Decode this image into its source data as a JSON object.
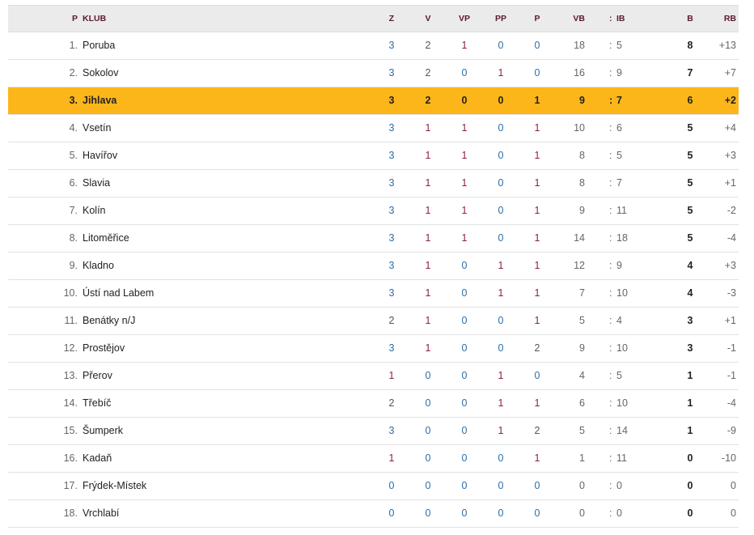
{
  "header": {
    "p": "P",
    "club": "KLUB",
    "z": "Z",
    "v": "V",
    "vp": "VP",
    "pp": "PP",
    "l": "P",
    "vb": "VB",
    "colon": ":",
    "ib": "IB",
    "b": "B",
    "rb": "RB"
  },
  "highlight_color": "#fdb61a",
  "highlighted_club": "Jihlava",
  "rows": [
    {
      "pos": "1.",
      "club": "Poruba",
      "z": "3",
      "v": "2",
      "vp": "1",
      "pp": "0",
      "l": "0",
      "vb": "18",
      "ib": "5",
      "b": "8",
      "rb": "+13"
    },
    {
      "pos": "2.",
      "club": "Sokolov",
      "z": "3",
      "v": "2",
      "vp": "0",
      "pp": "1",
      "l": "0",
      "vb": "16",
      "ib": "9",
      "b": "7",
      "rb": "+7"
    },
    {
      "pos": "3.",
      "club": "Jihlava",
      "z": "3",
      "v": "2",
      "vp": "0",
      "pp": "0",
      "l": "1",
      "vb": "9",
      "ib": "7",
      "b": "6",
      "rb": "+2"
    },
    {
      "pos": "4.",
      "club": "Vsetín",
      "z": "3",
      "v": "1",
      "vp": "1",
      "pp": "0",
      "l": "1",
      "vb": "10",
      "ib": "6",
      "b": "5",
      "rb": "+4"
    },
    {
      "pos": "5.",
      "club": "Havířov",
      "z": "3",
      "v": "1",
      "vp": "1",
      "pp": "0",
      "l": "1",
      "vb": "8",
      "ib": "5",
      "b": "5",
      "rb": "+3"
    },
    {
      "pos": "6.",
      "club": "Slavia",
      "z": "3",
      "v": "1",
      "vp": "1",
      "pp": "0",
      "l": "1",
      "vb": "8",
      "ib": "7",
      "b": "5",
      "rb": "+1"
    },
    {
      "pos": "7.",
      "club": "Kolín",
      "z": "3",
      "v": "1",
      "vp": "1",
      "pp": "0",
      "l": "1",
      "vb": "9",
      "ib": "11",
      "b": "5",
      "rb": "-2"
    },
    {
      "pos": "8.",
      "club": "Litoměřice",
      "z": "3",
      "v": "1",
      "vp": "1",
      "pp": "0",
      "l": "1",
      "vb": "14",
      "ib": "18",
      "b": "5",
      "rb": "-4"
    },
    {
      "pos": "9.",
      "club": "Kladno",
      "z": "3",
      "v": "1",
      "vp": "0",
      "pp": "1",
      "l": "1",
      "vb": "12",
      "ib": "9",
      "b": "4",
      "rb": "+3"
    },
    {
      "pos": "10.",
      "club": "Ústí nad Labem",
      "z": "3",
      "v": "1",
      "vp": "0",
      "pp": "1",
      "l": "1",
      "vb": "7",
      "ib": "10",
      "b": "4",
      "rb": "-3"
    },
    {
      "pos": "11.",
      "club": "Benátky n/J",
      "z": "2",
      "v": "1",
      "vp": "0",
      "pp": "0",
      "l": "1",
      "vb": "5",
      "ib": "4",
      "b": "3",
      "rb": "+1"
    },
    {
      "pos": "12.",
      "club": "Prostějov",
      "z": "3",
      "v": "1",
      "vp": "0",
      "pp": "0",
      "l": "2",
      "vb": "9",
      "ib": "10",
      "b": "3",
      "rb": "-1"
    },
    {
      "pos": "13.",
      "club": "Přerov",
      "z": "1",
      "v": "0",
      "vp": "0",
      "pp": "1",
      "l": "0",
      "vb": "4",
      "ib": "5",
      "b": "1",
      "rb": "-1"
    },
    {
      "pos": "14.",
      "club": "Třebíč",
      "z": "2",
      "v": "0",
      "vp": "0",
      "pp": "1",
      "l": "1",
      "vb": "6",
      "ib": "10",
      "b": "1",
      "rb": "-4"
    },
    {
      "pos": "15.",
      "club": "Šumperk",
      "z": "3",
      "v": "0",
      "vp": "0",
      "pp": "1",
      "l": "2",
      "vb": "5",
      "ib": "14",
      "b": "1",
      "rb": "-9"
    },
    {
      "pos": "16.",
      "club": "Kadaň",
      "z": "1",
      "v": "0",
      "vp": "0",
      "pp": "0",
      "l": "1",
      "vb": "1",
      "ib": "11",
      "b": "0",
      "rb": "-10"
    },
    {
      "pos": "17.",
      "club": "Frýdek-Místek",
      "z": "0",
      "v": "0",
      "vp": "0",
      "pp": "0",
      "l": "0",
      "vb": "0",
      "ib": "0",
      "b": "0",
      "rb": "0"
    },
    {
      "pos": "18.",
      "club": "Vrchlabí",
      "z": "0",
      "v": "0",
      "vp": "0",
      "pp": "0",
      "l": "0",
      "vb": "0",
      "ib": "0",
      "b": "0",
      "rb": "0"
    }
  ]
}
